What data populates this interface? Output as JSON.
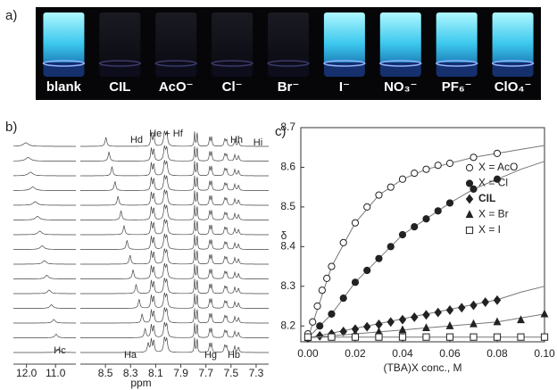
{
  "panel_a": {
    "panel_label": "a)",
    "vials": [
      {
        "label": "blank",
        "lit": true
      },
      {
        "label": "CIL",
        "lit": false
      },
      {
        "label": "AcO⁻",
        "lit": false
      },
      {
        "label": "Cl⁻",
        "lit": false
      },
      {
        "label": "Br⁻",
        "lit": false
      },
      {
        "label": "I⁻",
        "lit": true
      },
      {
        "label": "NO₃⁻",
        "lit": true
      },
      {
        "label": "PF₆⁻",
        "lit": true
      },
      {
        "label": "ClO₄⁻",
        "lit": true
      }
    ]
  },
  "panel_b": {
    "panel_label": "b)",
    "xlabel": "ppm",
    "xlims": [
      [
        12.45,
        10.3
      ],
      [
        8.7,
        7.2
      ]
    ],
    "xticks": [
      {
        "value": 12,
        "label": "12.0"
      },
      {
        "value": 11,
        "label": "11.0"
      },
      8.5,
      8.3,
      8.1,
      7.9,
      7.7,
      7.5,
      7.3
    ],
    "peak_labels": [
      "Hd",
      "He + Hf",
      "Hh",
      "Hi",
      "Hc",
      "Ha",
      "Hg",
      "Hb"
    ]
  },
  "chart_data": {
    "type": "scatter",
    "panel_label": "c)",
    "xlabel": "(TBA)X conc., M",
    "ylabel": "δ",
    "xlim": [
      -0.003,
      0.1
    ],
    "ylim": [
      8.16,
      8.7
    ],
    "xticks": [
      {
        "value": 0,
        "label": "0.00"
      },
      {
        "value": 0.02,
        "label": "0.02"
      },
      {
        "value": 0.04,
        "label": "0.04"
      },
      {
        "value": 0.06,
        "label": "0.06"
      },
      {
        "value": 0.08,
        "label": "0.08"
      },
      {
        "value": 0.1,
        "label": "0.10"
      }
    ],
    "yticks": [
      8.2,
      8.3,
      8.4,
      8.5,
      8.6,
      8.7
    ],
    "fit_x": [
      0,
      0.01,
      0.02,
      0.03,
      0.04,
      0.05,
      0.06,
      0.07,
      0.08,
      0.09,
      0.1
    ],
    "series": [
      {
        "name": "X = AcO",
        "marker": "circle-open",
        "color": "#222",
        "x": [
          0,
          0.002,
          0.004,
          0.006,
          0.008,
          0.01,
          0.015,
          0.02,
          0.025,
          0.03,
          0.035,
          0.04,
          0.045,
          0.05,
          0.055,
          0.06,
          0.07,
          0.08
        ],
        "values": [
          8.18,
          8.21,
          8.25,
          8.29,
          8.32,
          8.35,
          8.41,
          8.46,
          8.5,
          8.53,
          8.55,
          8.57,
          8.585,
          8.595,
          8.605,
          8.61,
          8.625,
          8.635
        ],
        "fit_values": [
          8.17,
          8.35,
          8.46,
          8.53,
          8.57,
          8.595,
          8.61,
          8.625,
          8.635,
          8.645,
          8.655
        ]
      },
      {
        "name": "X = Cl",
        "marker": "circle",
        "color": "#222",
        "x": [
          0,
          0.005,
          0.01,
          0.015,
          0.02,
          0.025,
          0.03,
          0.035,
          0.04,
          0.045,
          0.05,
          0.055,
          0.06,
          0.07,
          0.08
        ],
        "values": [
          8.17,
          8.2,
          8.23,
          8.27,
          8.31,
          8.34,
          8.37,
          8.4,
          8.43,
          8.45,
          8.47,
          8.49,
          8.51,
          8.545,
          8.57
        ],
        "fit_values": [
          8.17,
          8.23,
          8.31,
          8.37,
          8.43,
          8.47,
          8.51,
          8.545,
          8.57,
          8.595,
          8.615
        ]
      },
      {
        "name": "CIL",
        "marker": "diamond",
        "color": "#222",
        "x": [
          0,
          0.005,
          0.01,
          0.015,
          0.02,
          0.025,
          0.03,
          0.035,
          0.04,
          0.045,
          0.05,
          0.055,
          0.06,
          0.065,
          0.07,
          0.075,
          0.08
        ],
        "values": [
          8.17,
          8.175,
          8.18,
          8.186,
          8.192,
          8.198,
          8.204,
          8.21,
          8.216,
          8.222,
          8.228,
          8.234,
          8.24,
          8.246,
          8.252,
          8.26,
          8.265
        ],
        "fit_values": [
          8.17,
          8.182,
          8.194,
          8.206,
          8.218,
          8.23,
          8.242,
          8.254,
          8.266,
          8.285,
          8.3
        ]
      },
      {
        "name": "X = Br",
        "marker": "triangle",
        "color": "#222",
        "x": [
          0,
          0.01,
          0.02,
          0.03,
          0.04,
          0.05,
          0.06,
          0.07,
          0.08,
          0.09,
          0.1
        ],
        "values": [
          8.17,
          8.175,
          8.18,
          8.185,
          8.19,
          8.195,
          8.2,
          8.205,
          8.21,
          8.215,
          8.23
        ],
        "fit_values": [
          8.17,
          8.175,
          8.18,
          8.185,
          8.19,
          8.195,
          8.2,
          8.205,
          8.21,
          8.22,
          8.23
        ]
      },
      {
        "name": "X = I",
        "marker": "square-open",
        "color": "#222",
        "x": [
          0,
          0.01,
          0.02,
          0.03,
          0.04,
          0.05,
          0.06,
          0.07,
          0.08,
          0.09,
          0.1
        ],
        "values": [
          8.172,
          8.172,
          8.172,
          8.172,
          8.172,
          8.172,
          8.172,
          8.172,
          8.172,
          8.172,
          8.172
        ],
        "fit_values": [
          8.172,
          8.172,
          8.172,
          8.172,
          8.172,
          8.172,
          8.172,
          8.172,
          8.172,
          8.172,
          8.172
        ]
      }
    ]
  }
}
